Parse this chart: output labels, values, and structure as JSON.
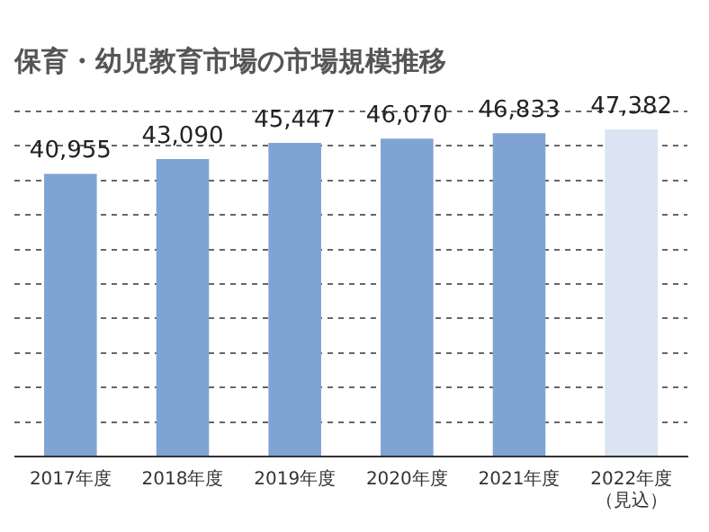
{
  "chart_data": {
    "type": "bar",
    "title": "保育・幼児教育市場の市場規模推移",
    "categories": [
      "2017年度",
      "2018年度",
      "2019年度",
      "2020年度",
      "2021年度",
      "2022年度（見込）"
    ],
    "values": [
      40955,
      43090,
      45447,
      46070,
      46833,
      47382
    ],
    "colors": [
      "#7fa3d3",
      "#7fa3d3",
      "#7fa3d3",
      "#7fa3d3",
      "#7fa3d3",
      "#dae4f2"
    ],
    "value_labels": [
      "40,955",
      "43,090",
      "45,447",
      "46,070",
      "46,833",
      "47,382"
    ],
    "tick_labels": "x",
    "grid": "y",
    "legend": false
  }
}
